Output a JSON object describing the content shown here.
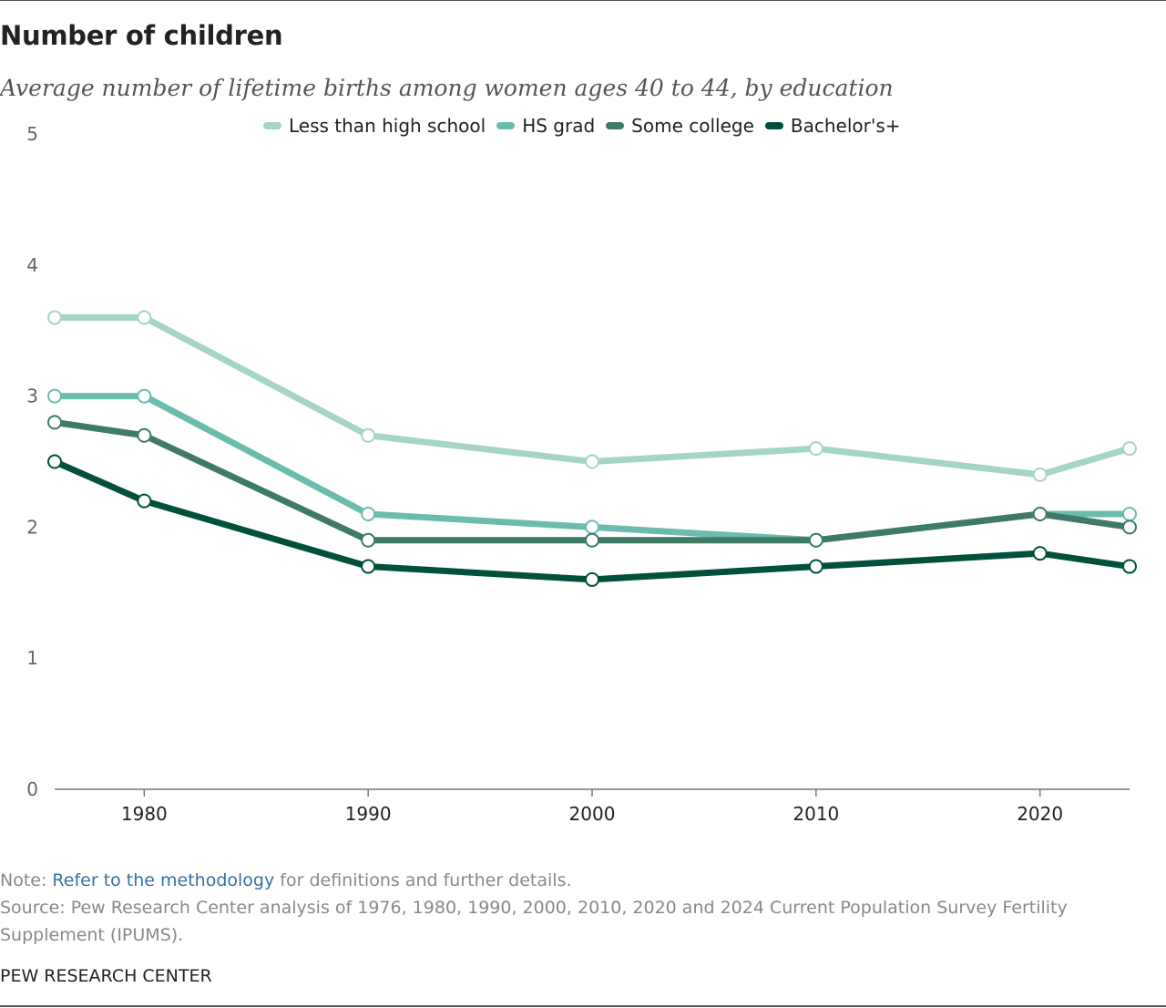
{
  "header": {
    "title": "Number of children",
    "subtitle": "Average number of lifetime births among women ages 40 to 44, by education"
  },
  "notes": {
    "note_prefix": "Note: ",
    "note_link": "Refer to the methodology",
    "note_suffix": " for definitions and further details.",
    "source": "Source: Pew Research Center analysis of 1976, 1980, 1990, 2000, 2010, 2020 and 2024 Current Population Survey Fertility Supplement (IPUMS)."
  },
  "footer": {
    "brand": "PEW RESEARCH CENTER"
  },
  "chart_data": {
    "type": "line",
    "title": "Number of children",
    "subtitle": "Average number of lifetime births among women ages 40 to 44, by education",
    "xlabel": "",
    "ylabel": "",
    "x": [
      1976,
      1980,
      1990,
      2000,
      2010,
      2020,
      2024
    ],
    "xticks": [
      1980,
      1990,
      2000,
      2010,
      2020
    ],
    "xlim": [
      1976,
      2024
    ],
    "ylim": [
      0,
      5
    ],
    "yticks": [
      0,
      1,
      2,
      3,
      4,
      5
    ],
    "grid": false,
    "legend": "top",
    "series": [
      {
        "name": "Less than high school",
        "color": "#a6d4c7",
        "values": [
          3.6,
          3.6,
          2.7,
          2.5,
          2.6,
          2.4,
          2.6
        ]
      },
      {
        "name": "HS grad",
        "color": "#6bbcae",
        "values": [
          3.0,
          3.0,
          2.1,
          2.0,
          1.9,
          2.1,
          2.1
        ]
      },
      {
        "name": "Some college",
        "color": "#3f7a66",
        "values": [
          2.8,
          2.7,
          1.9,
          1.9,
          1.9,
          2.1,
          2.0
        ]
      },
      {
        "name": "Bachelor's+",
        "color": "#00503b",
        "values": [
          2.5,
          2.2,
          1.7,
          1.6,
          1.7,
          1.8,
          1.7
        ]
      }
    ]
  }
}
